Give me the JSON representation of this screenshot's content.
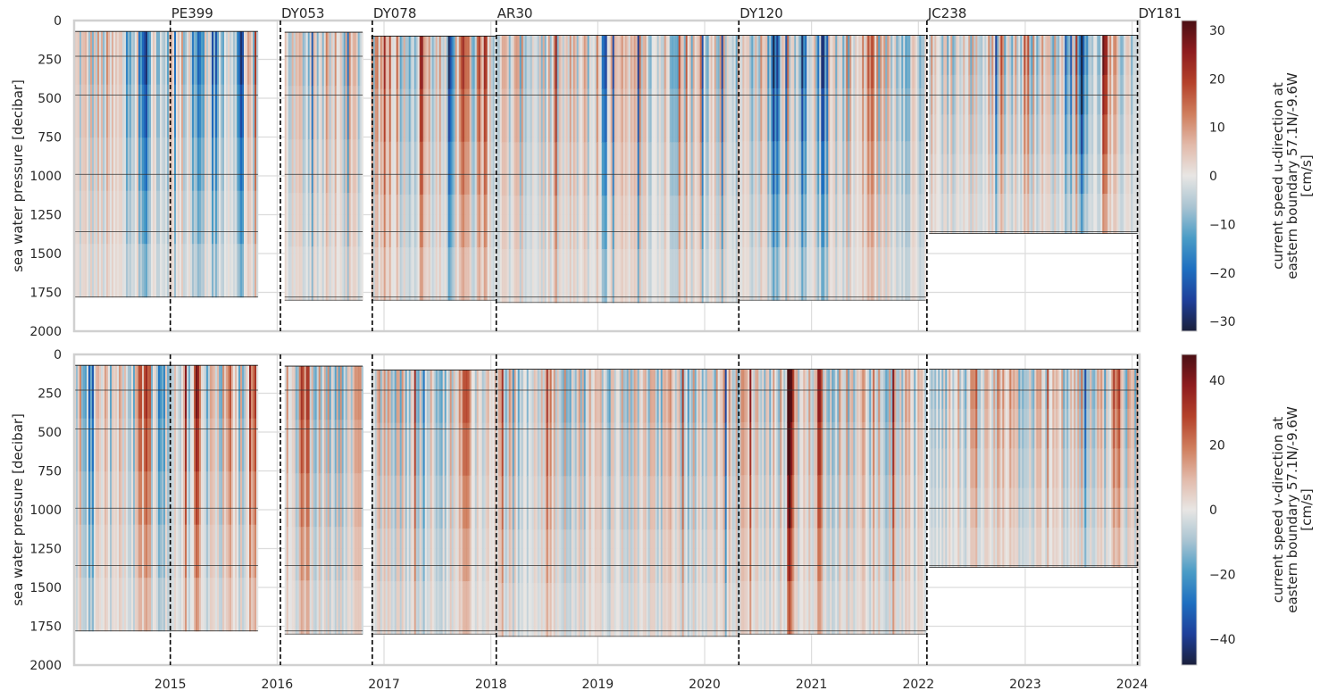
{
  "chart_data": [
    {
      "type": "heatmap",
      "panel": "top",
      "title": "",
      "xlabel": "",
      "ylabel": "sea water pressure [decibar]",
      "ylim": [
        2000,
        0
      ],
      "xlim": [
        2014.55,
        2024.52
      ],
      "x_ticks": [
        "2015",
        "2016",
        "2017",
        "2018",
        "2019",
        "2020",
        "2021",
        "2022",
        "2023",
        "2024"
      ],
      "y_ticks": [
        "0",
        "250",
        "500",
        "750",
        "1000",
        "1250",
        "1500",
        "1750",
        "2000"
      ],
      "grid": true,
      "colorbar": {
        "label_lines": [
          "current speed u-direction at",
          "eastern boundary 57.1N/-9.6W",
          "[cm/s]"
        ],
        "vmin": -32,
        "vmax": 32,
        "ticks": [
          "30",
          "20",
          "10",
          "0",
          "−10",
          "−20",
          "−30"
        ]
      },
      "deployments": [
        {
          "start": 2014.55,
          "end": 2016.27,
          "top": 70,
          "bottom": 1780
        },
        {
          "start": 2016.52,
          "end": 2017.25,
          "top": 75,
          "bottom": 1800
        },
        {
          "start": 2017.33,
          "end": 2018.5,
          "top": 100,
          "bottom": 1800
        },
        {
          "start": 2018.5,
          "end": 2020.77,
          "top": 95,
          "bottom": 1815
        },
        {
          "start": 2020.77,
          "end": 2022.52,
          "top": 95,
          "bottom": 1800
        },
        {
          "start": 2022.55,
          "end": 2024.5,
          "top": 95,
          "bottom": 1370
        }
      ],
      "instrument_depths": [
        230,
        480,
        990,
        1360,
        1780
      ],
      "strong_events": [
        {
          "x": 2015.2,
          "sign": -1,
          "strength": 0.8
        },
        {
          "x": 2015.7,
          "sign": -1,
          "strength": 0.9
        },
        {
          "x": 2015.85,
          "sign": -1,
          "strength": 0.85
        },
        {
          "x": 2016.1,
          "sign": -1,
          "strength": 0.7
        },
        {
          "x": 2017.5,
          "sign": 1,
          "strength": 0.6
        },
        {
          "x": 2017.8,
          "sign": 1,
          "strength": 0.6
        },
        {
          "x": 2018.2,
          "sign": 1,
          "strength": 0.9
        },
        {
          "x": 2018.35,
          "sign": 1,
          "strength": 0.8
        },
        {
          "x": 2018.05,
          "sign": -1,
          "strength": 0.7
        },
        {
          "x": 2019.5,
          "sign": -1,
          "strength": 0.7
        },
        {
          "x": 2021.1,
          "sign": -1,
          "strength": 0.8
        },
        {
          "x": 2021.35,
          "sign": -1,
          "strength": 0.9
        },
        {
          "x": 2021.55,
          "sign": -1,
          "strength": 0.7
        },
        {
          "x": 2022.0,
          "sign": 1,
          "strength": 0.6
        },
        {
          "x": 2024.0,
          "sign": -1,
          "strength": 0.7
        },
        {
          "x": 2024.2,
          "sign": 1,
          "strength": 0.6
        }
      ]
    },
    {
      "type": "heatmap",
      "panel": "bottom",
      "title": "",
      "xlabel": "",
      "ylabel": "sea water pressure [decibar]",
      "ylim": [
        2000,
        0
      ],
      "xlim": [
        2014.55,
        2024.52
      ],
      "x_ticks": [
        "2015",
        "2016",
        "2017",
        "2018",
        "2019",
        "2020",
        "2021",
        "2022",
        "2023",
        "2024"
      ],
      "y_ticks": [
        "0",
        "250",
        "500",
        "750",
        "1000",
        "1250",
        "1500",
        "1750",
        "2000"
      ],
      "grid": true,
      "colorbar": {
        "label_lines": [
          "current speed v-direction at",
          "eastern boundary 57.1N/-9.6W",
          "[cm/s]"
        ],
        "vmin": -48,
        "vmax": 48,
        "ticks": [
          "40",
          "20",
          "0",
          "−20",
          "−40"
        ]
      },
      "deployments": [
        {
          "start": 2014.55,
          "end": 2016.27,
          "top": 70,
          "bottom": 1780
        },
        {
          "start": 2016.52,
          "end": 2017.25,
          "top": 75,
          "bottom": 1800
        },
        {
          "start": 2017.33,
          "end": 2018.5,
          "top": 100,
          "bottom": 1800
        },
        {
          "start": 2018.5,
          "end": 2020.77,
          "top": 95,
          "bottom": 1815
        },
        {
          "start": 2020.77,
          "end": 2022.52,
          "top": 95,
          "bottom": 1800
        },
        {
          "start": 2022.55,
          "end": 2024.5,
          "top": 95,
          "bottom": 1370
        }
      ],
      "instrument_depths": [
        230,
        480,
        990,
        1360,
        1780
      ],
      "strong_events": [
        {
          "x": 2014.7,
          "sign": -1,
          "strength": 0.6
        },
        {
          "x": 2015.2,
          "sign": 1,
          "strength": 0.8
        },
        {
          "x": 2015.35,
          "sign": -1,
          "strength": 0.7
        },
        {
          "x": 2015.7,
          "sign": 1,
          "strength": 0.85
        },
        {
          "x": 2016.0,
          "sign": 1,
          "strength": 0.85
        },
        {
          "x": 2016.2,
          "sign": 1,
          "strength": 0.8
        },
        {
          "x": 2016.7,
          "sign": 1,
          "strength": 0.6
        },
        {
          "x": 2018.2,
          "sign": 1,
          "strength": 0.7
        },
        {
          "x": 2019.0,
          "sign": 1,
          "strength": 0.6
        },
        {
          "x": 2021.25,
          "sign": 1,
          "strength": 0.95
        },
        {
          "x": 2021.5,
          "sign": 1,
          "strength": 0.9
        },
        {
          "x": 2023.3,
          "sign": 1,
          "strength": 0.6
        },
        {
          "x": 2024.0,
          "sign": -1,
          "strength": 0.7
        },
        {
          "x": 2024.3,
          "sign": 1,
          "strength": 0.6
        }
      ]
    }
  ],
  "cruises": [
    {
      "label": "PE399",
      "x": 2015.45
    },
    {
      "label": "DY053",
      "x": 2016.48
    },
    {
      "label": "DY078",
      "x": 2017.34
    },
    {
      "label": "AR30",
      "x": 2018.5
    },
    {
      "label": "DY120",
      "x": 2020.77
    },
    {
      "label": "JC238",
      "x": 2022.53
    },
    {
      "label": "DY181",
      "x": 2024.5
    }
  ],
  "colors": {
    "grid": "#dcdcdc",
    "axes_edge": "#d0d0d0",
    "cruise_line": "#000000",
    "cmap": [
      "#1a1f3a",
      "#1e3f9a",
      "#1e6fc0",
      "#4a9cc6",
      "#a9c4d2",
      "#e8e6e4",
      "#e2b9a9",
      "#cf7d5c",
      "#b4412a",
      "#8e1c1e",
      "#4a0f14"
    ]
  }
}
